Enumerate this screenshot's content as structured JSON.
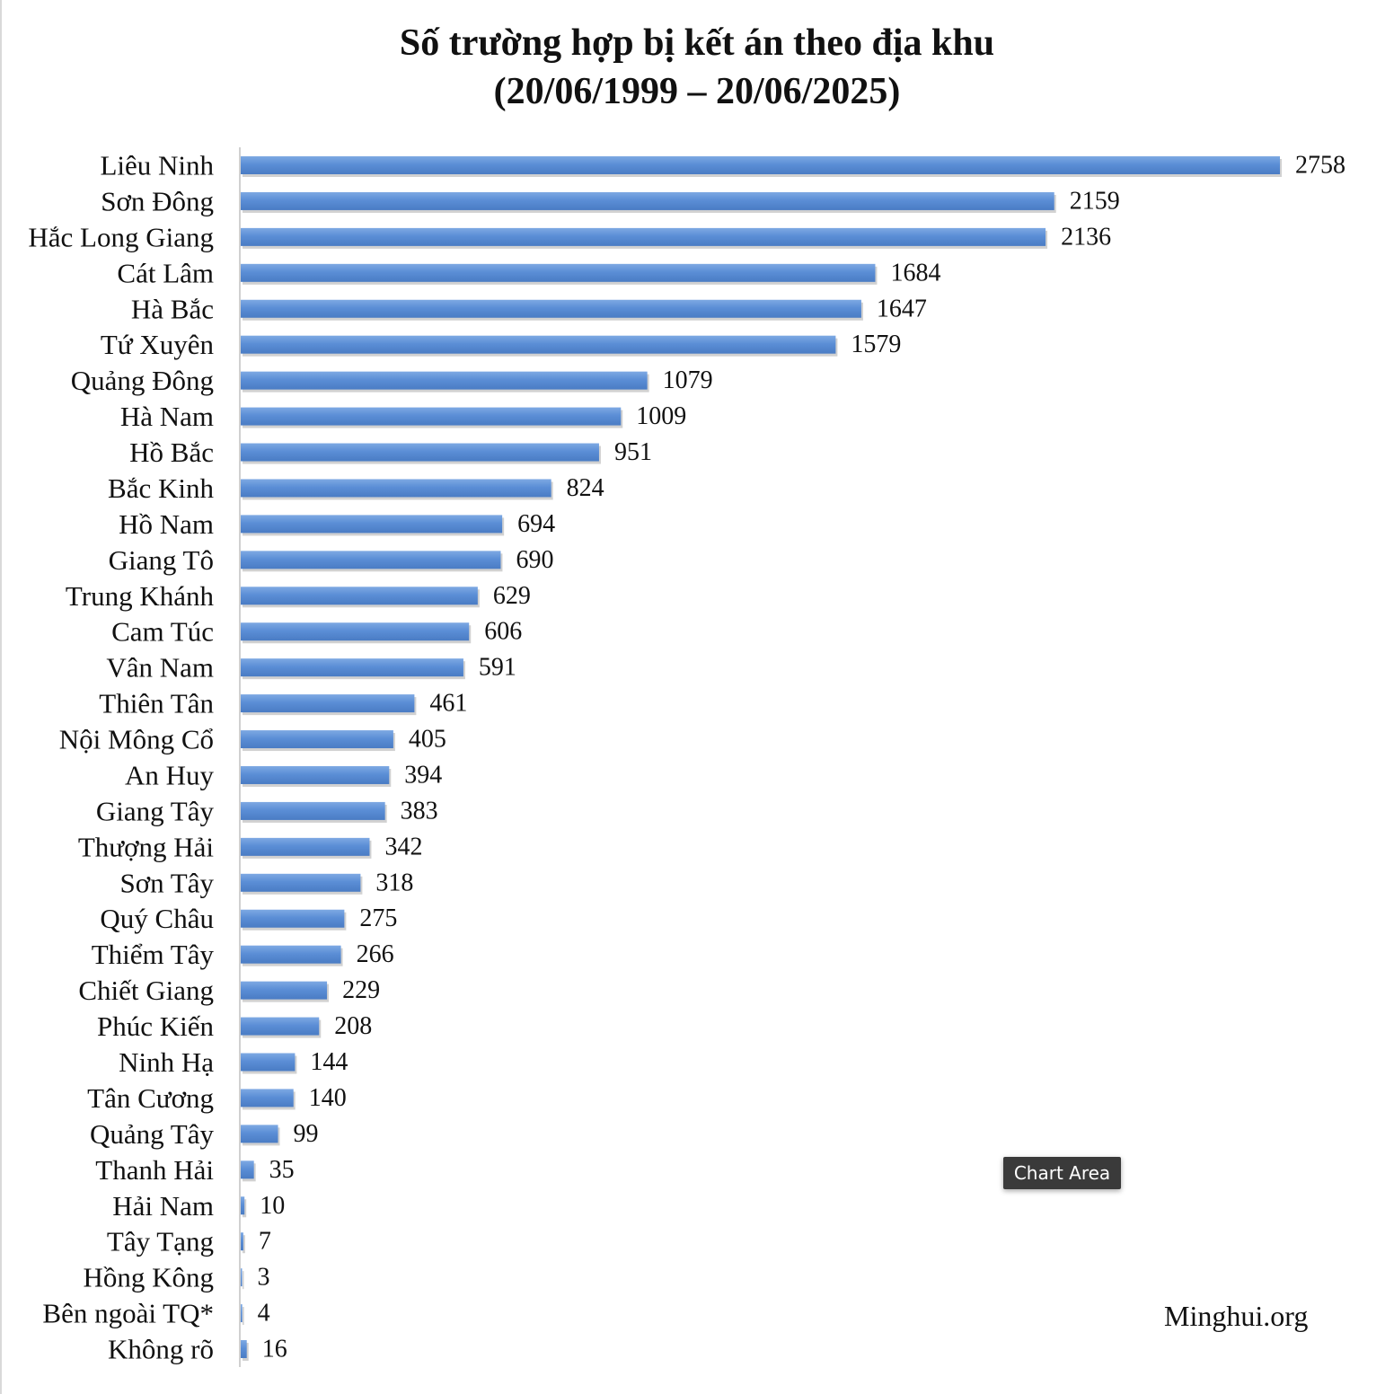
{
  "chart_data": {
    "type": "bar",
    "orientation": "horizontal",
    "title": "Số trường hợp bị kết án theo địa khu",
    "subtitle": "(20/06/1999 – 20/06/2025)",
    "xlabel": "",
    "ylabel": "",
    "grid": false,
    "legend": "none",
    "bar_color": "#5b8ed6",
    "categories": [
      "Liêu Ninh",
      "Sơn Đông",
      "Hắc Long Giang",
      "Cát Lâm",
      "Hà Bắc",
      "Tứ Xuyên",
      "Quảng Đông",
      "Hà Nam",
      "Hồ Bắc",
      "Bắc Kinh",
      "Hồ Nam",
      "Giang Tô",
      "Trung Khánh",
      "Cam Túc",
      "Vân Nam",
      "Thiên Tân",
      "Nội Mông Cổ",
      "An Huy",
      "Giang Tây",
      "Thượng Hải",
      "Sơn Tây",
      "Quý Châu",
      "Thiểm Tây",
      "Chiết Giang",
      "Phúc Kiến",
      "Ninh Hạ",
      "Tân Cương",
      "Quảng Tây",
      "Thanh Hải",
      "Hải Nam",
      "Tây Tạng",
      "Hồng Kông",
      "Bên ngoài TQ*",
      "Không rõ"
    ],
    "values": [
      2758,
      2159,
      2136,
      1684,
      1647,
      1579,
      1079,
      1009,
      951,
      824,
      694,
      690,
      629,
      606,
      591,
      461,
      405,
      394,
      383,
      342,
      318,
      275,
      266,
      229,
      208,
      144,
      140,
      99,
      35,
      10,
      7,
      3,
      4,
      16
    ],
    "xlim": [
      0,
      2758
    ]
  },
  "tooltip": {
    "text": "Chart Area"
  },
  "watermark": {
    "text": "Minghui.org"
  }
}
